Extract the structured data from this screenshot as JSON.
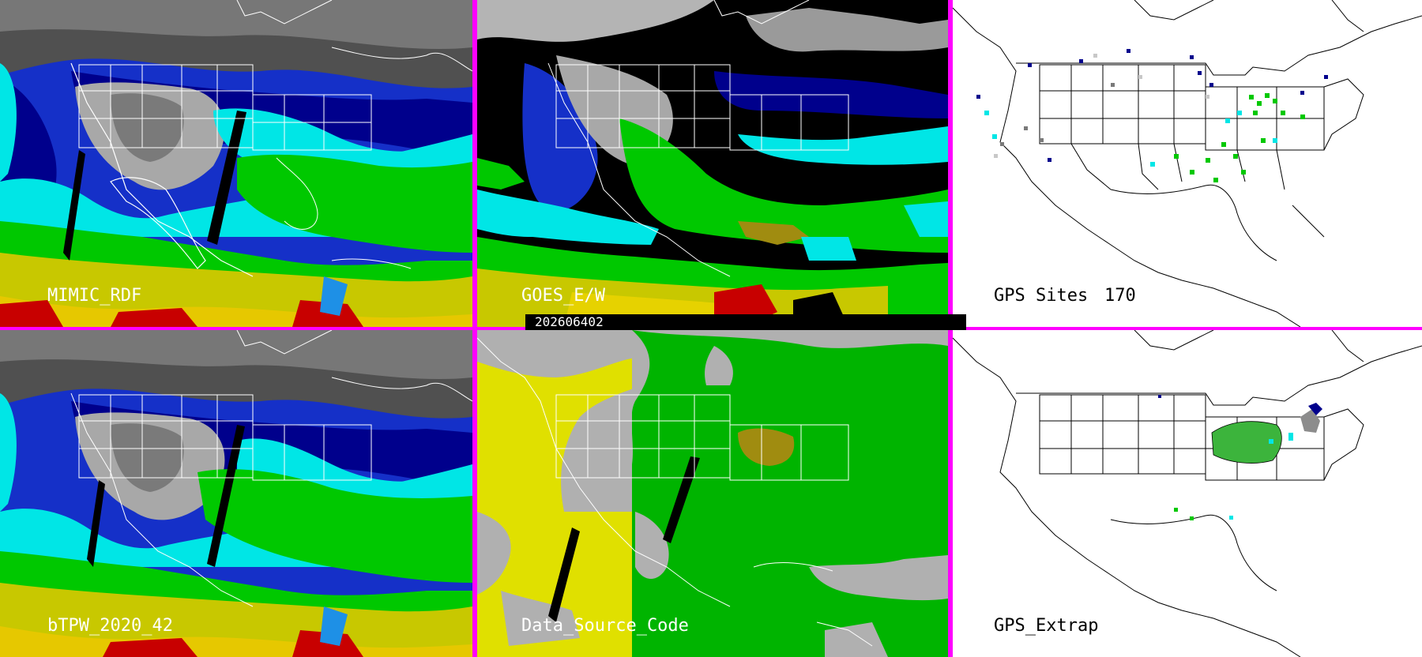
{
  "panels": {
    "p1": {
      "label": "MIMIC_RDF"
    },
    "p2": {
      "label": "GOES_E/W"
    },
    "p3": {
      "label": "GPS Sites",
      "count": "170"
    },
    "p4": {
      "label": "bTPW_2020_42"
    },
    "p5": {
      "label": "Data_Source_Code"
    },
    "p6": {
      "label": "GPS_Extrap"
    }
  },
  "timestamp": "202606402",
  "colors": {
    "divider": "#ff00ff",
    "grey_land": "#a0a0a0",
    "dark_grey": "#505050",
    "deep_blue": "#00008c",
    "mid_blue": "#1e3cd2",
    "cyan": "#00e6e6",
    "green": "#00c800",
    "olive": "#b4b400",
    "yellow": "#dcdc00",
    "red": "#c80000",
    "source_yellow": "#e0e000",
    "source_green": "#00b400",
    "source_grey": "#b0b0b0",
    "source_olive": "#a08c10"
  },
  "icons": [
    "coastline-map",
    "state-borders",
    "gps-site-markers"
  ]
}
